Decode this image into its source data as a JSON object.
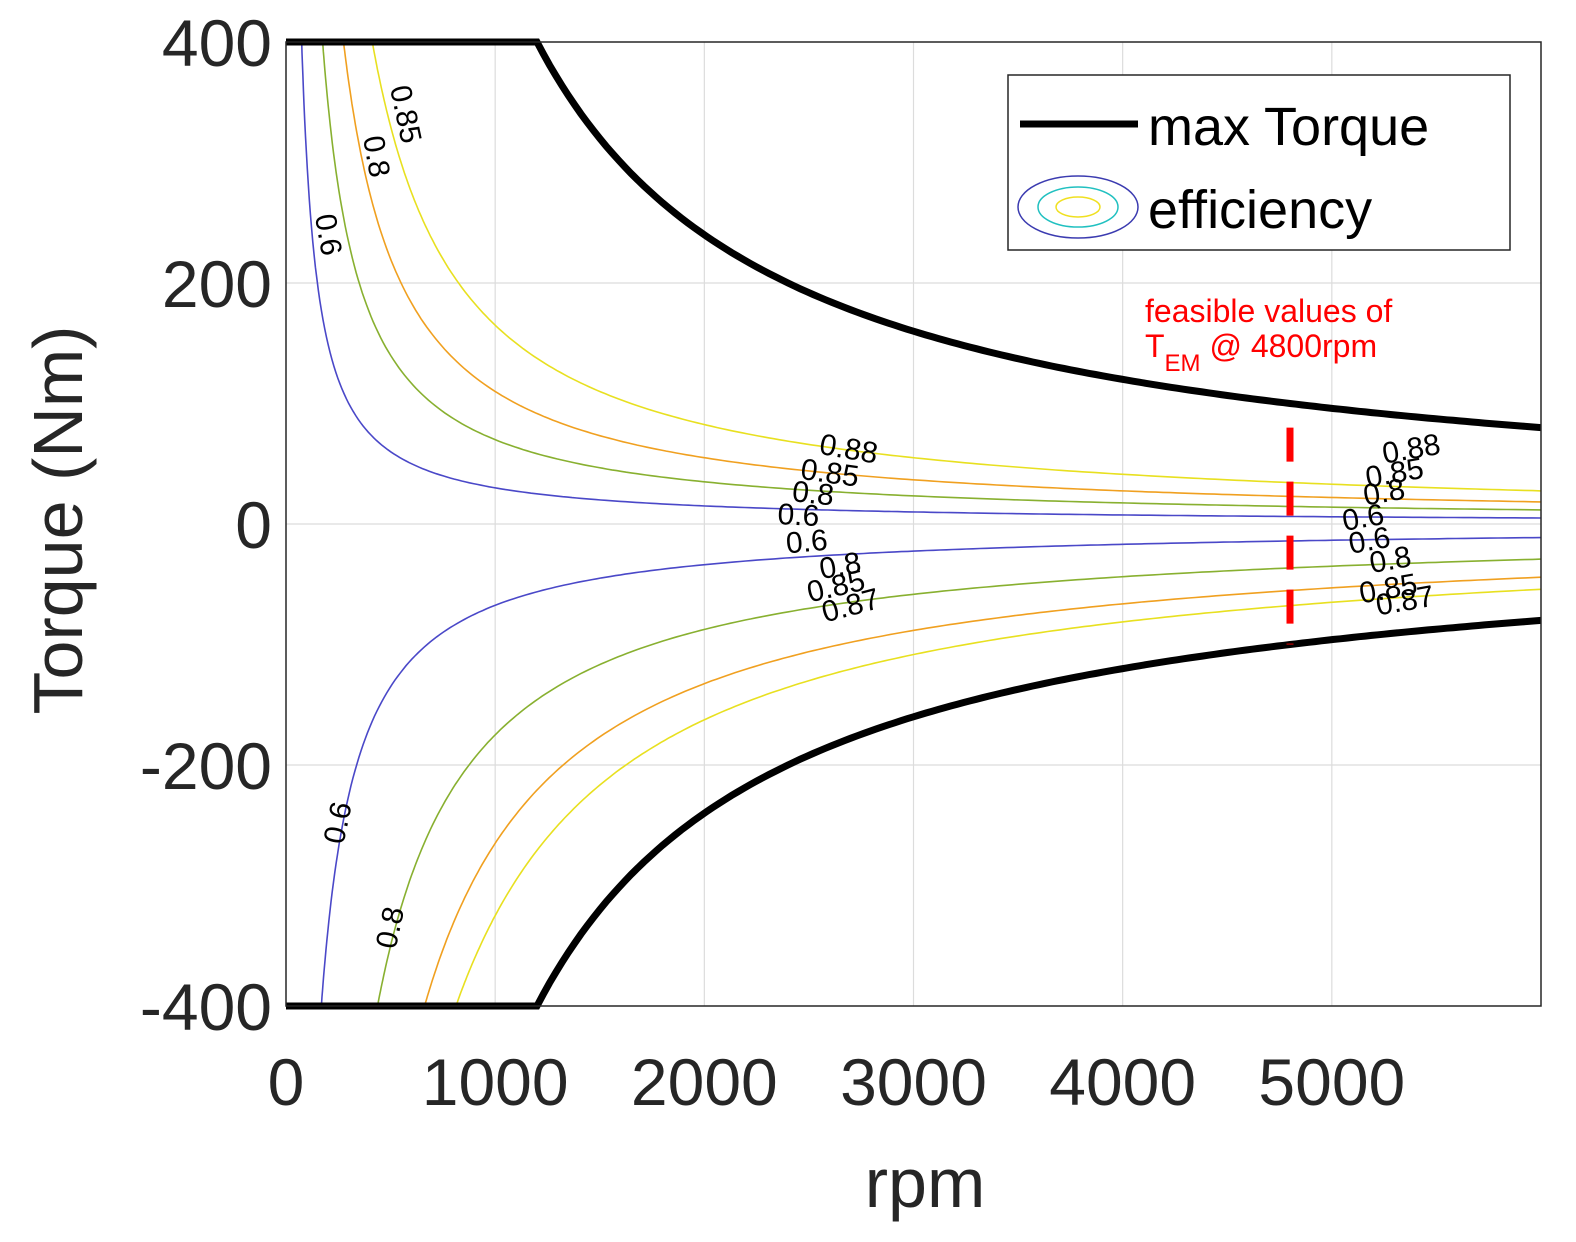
{
  "chart_data": {
    "type": "line",
    "xlabel": "rpm",
    "ylabel": "Torque (Nm)",
    "xlim": [
      0,
      6000
    ],
    "ylim": [
      -400,
      400
    ],
    "xticks": [
      0,
      1000,
      2000,
      3000,
      4000,
      5000
    ],
    "yticks": [
      -400,
      -200,
      0,
      200,
      400
    ],
    "xtick_labels": [
      "0",
      "1000",
      "2000",
      "3000",
      "4000",
      "5000"
    ],
    "ytick_labels": [
      "-400",
      "-200",
      "0",
      "200",
      "400"
    ],
    "grid": true,
    "legend": {
      "placement": "top-right",
      "entries": [
        {
          "label": "max Torque",
          "kind": "line",
          "color": "#000000"
        },
        {
          "label": "efficiency",
          "kind": "contour",
          "colors": [
            "#3b3bb0",
            "#20c0c0",
            "#f0e020"
          ]
        }
      ]
    },
    "max_torque": {
      "name": "max Torque",
      "color": "#000000",
      "base_speed_rpm": 1200,
      "max_torque_nm": 400,
      "power_constant_nm_rpm": 480000,
      "note": "T = +/-400 up to 1200 rpm, then T = +/-480000/rpm (constant power)"
    },
    "efficiency_contours": [
      {
        "level": "0.6",
        "sign": "positive",
        "color": "#4a48c8",
        "k": 30000
      },
      {
        "level": "0.8",
        "sign": "positive",
        "color": "#88b030",
        "k": 70000
      },
      {
        "level": "0.85",
        "sign": "positive",
        "color": "#f0a020",
        "k": 110000
      },
      {
        "level": "0.88",
        "sign": "positive",
        "color": "#e8e020",
        "k": 165000
      },
      {
        "level": "0.6",
        "sign": "negative",
        "color": "#4a48c8",
        "k": 67500
      },
      {
        "level": "0.8",
        "sign": "negative",
        "color": "#88b030",
        "k": 175000
      },
      {
        "level": "0.85",
        "sign": "negative",
        "color": "#f0a020",
        "k": 265000
      },
      {
        "level": "0.87",
        "sign": "negative",
        "color": "#e8e020",
        "k": 325000
      }
    ],
    "contour_labels": [
      {
        "text": "0.6",
        "x": 200,
        "y": 240,
        "angle": 80
      },
      {
        "text": "0.8",
        "x": 430,
        "y": 305,
        "angle": 80
      },
      {
        "text": "0.85",
        "x": 570,
        "y": 340,
        "angle": 78
      },
      {
        "text": "0.88",
        "x": 2690,
        "y": 62,
        "angle": 10
      },
      {
        "text": "0.85",
        "x": 2600,
        "y": 42,
        "angle": 8
      },
      {
        "text": "0.8",
        "x": 2520,
        "y": 25,
        "angle": 6
      },
      {
        "text": "0.6",
        "x": 2450,
        "y": 7,
        "angle": 3
      },
      {
        "text": "0.6",
        "x": 2490,
        "y": -15,
        "angle": -5
      },
      {
        "text": "0.8",
        "x": 2650,
        "y": -35,
        "angle": -10
      },
      {
        "text": "0.85",
        "x": 2630,
        "y": -52,
        "angle": -13
      },
      {
        "text": "0.87",
        "x": 2700,
        "y": -68,
        "angle": -15
      },
      {
        "text": "0.6",
        "x": 250,
        "y": -248,
        "angle": -78
      },
      {
        "text": "0.8",
        "x": 500,
        "y": -335,
        "angle": -78
      },
      {
        "text": "0.88",
        "x": 5380,
        "y": 62,
        "angle": -10
      },
      {
        "text": "0.85",
        "x": 5300,
        "y": 42,
        "angle": -10
      },
      {
        "text": "0.8",
        "x": 5250,
        "y": 26,
        "angle": -10
      },
      {
        "text": "0.6",
        "x": 5150,
        "y": 5,
        "angle": -10
      },
      {
        "text": "0.6",
        "x": 5180,
        "y": -14,
        "angle": -10
      },
      {
        "text": "0.8",
        "x": 5280,
        "y": -30,
        "angle": -10
      },
      {
        "text": "0.85",
        "x": 5270,
        "y": -54,
        "angle": -10
      },
      {
        "text": "0.87",
        "x": 5350,
        "y": -64,
        "angle": -10
      }
    ],
    "annotation": {
      "line1": "feasible values of",
      "t_main": "T",
      "t_sub": "EM",
      "line2_rest": " @ 4800rpm",
      "color": "#ff0000",
      "marker_x": 4800,
      "marker_y_range": [
        -100,
        80
      ]
    }
  }
}
